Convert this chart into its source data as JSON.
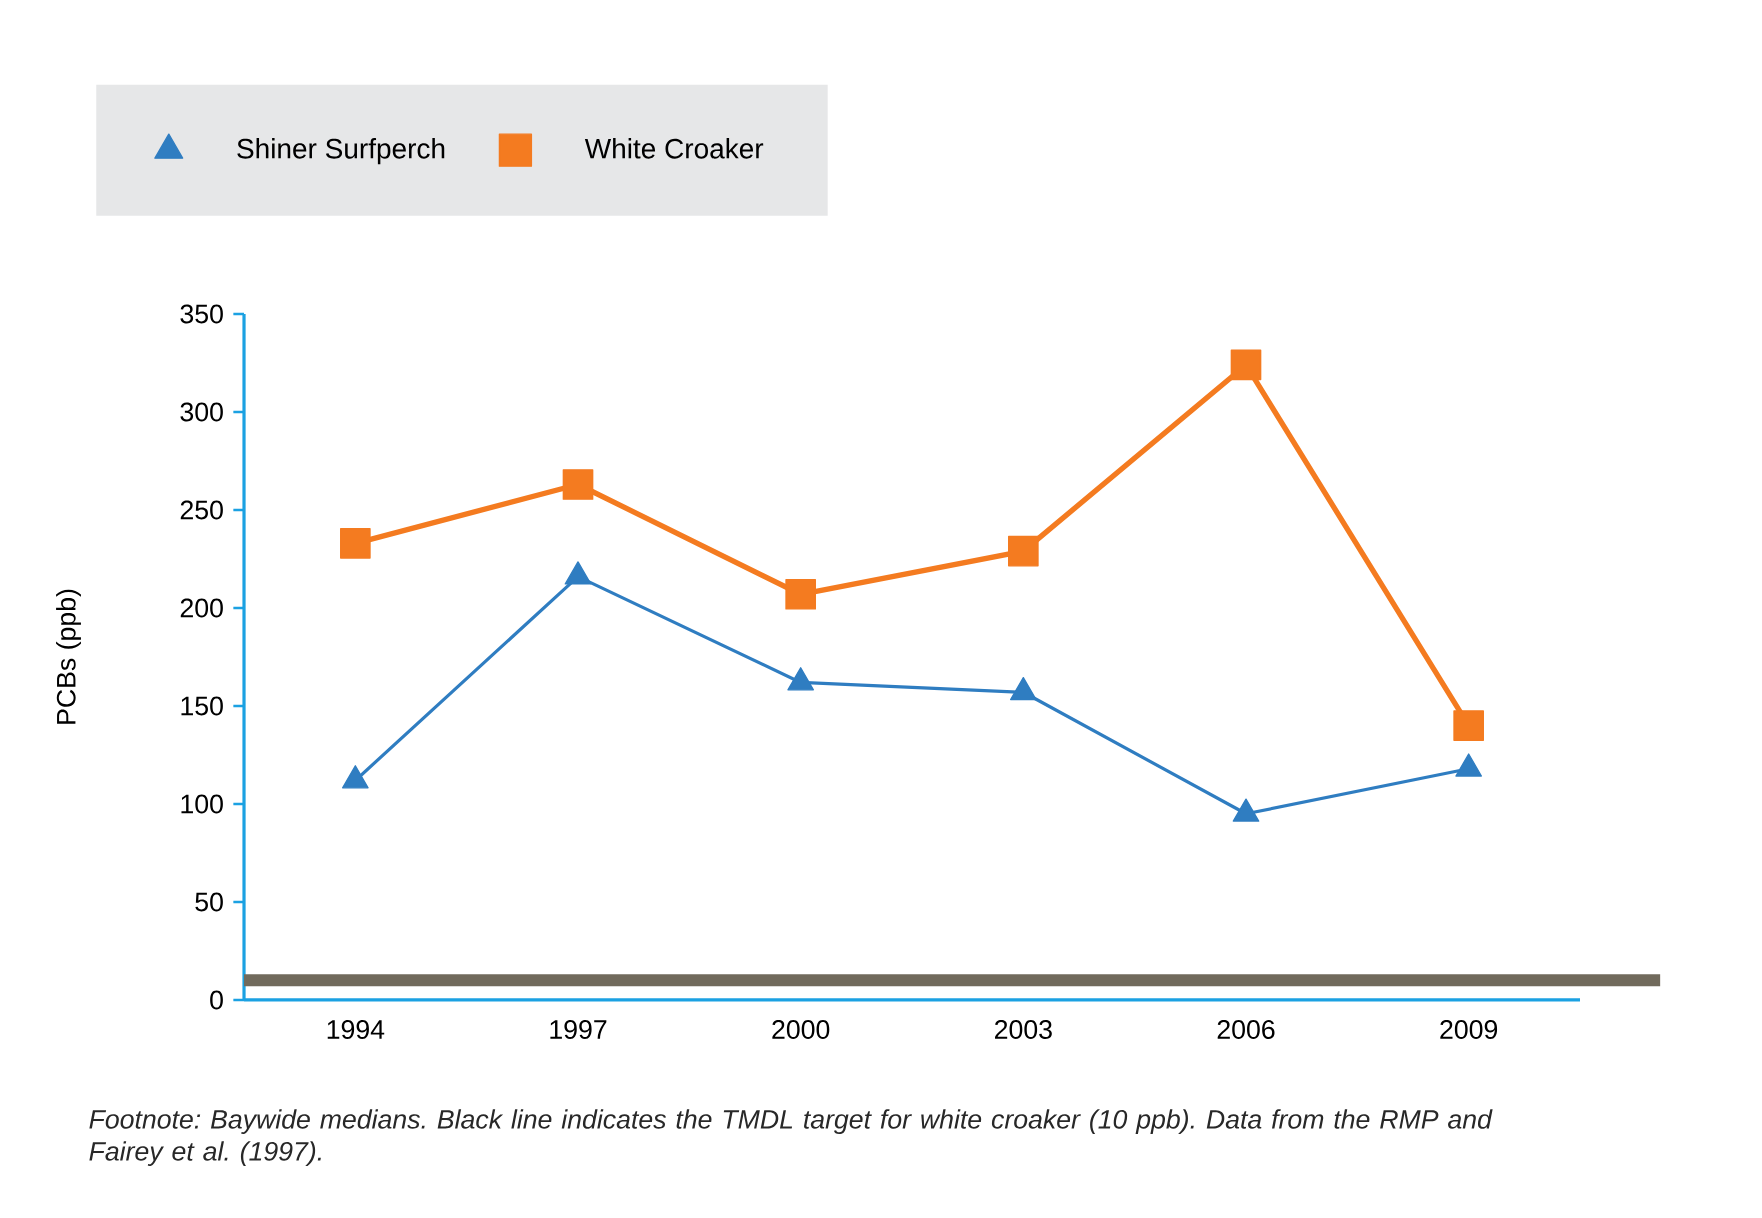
{
  "chart_data": {
    "type": "line",
    "categories": [
      "1994",
      "1997",
      "2000",
      "2003",
      "2006",
      "2009"
    ],
    "series": [
      {
        "name": "Shiner Surfperch",
        "color": "#2f7dc1",
        "marker": "triangle",
        "values": [
          112,
          216,
          162,
          157,
          95,
          118
        ]
      },
      {
        "name": "White Croaker",
        "color": "#f47b20",
        "marker": "square",
        "values": [
          233,
          263,
          207,
          229,
          324,
          140
        ]
      }
    ],
    "ylabel": "PCBs (ppb)",
    "ylim": [
      0,
      350
    ],
    "yticks": [
      0,
      50,
      100,
      150,
      200,
      250,
      300,
      350
    ],
    "ref_lines": [
      {
        "axis": "y",
        "value": 10,
        "color": "#716a5c"
      }
    ],
    "legend": "top left",
    "grid": false,
    "annotations": [
      "*Footnote: Baywide medians. Black line indicates the TMDL target for white croaker (10 ppb). Data from the RMP and Fairey et al. (1997).*"
    ]
  }
}
